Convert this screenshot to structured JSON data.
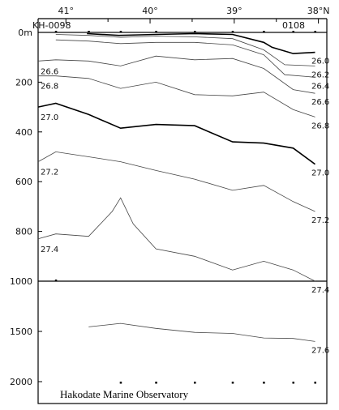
{
  "chart_data": {
    "type": "line",
    "title": "",
    "cruise": "KH-0098",
    "date_code": "0108",
    "credit": "Hakodate Marine Observatory",
    "x_axis": {
      "quantity": "latitude",
      "unit": "°N",
      "range": [
        41.33,
        37.9
      ],
      "ticks": [
        {
          "value": 41,
          "label": "41°"
        },
        {
          "value": 40,
          "label": "40°"
        },
        {
          "value": 39,
          "label": "39°"
        },
        {
          "value": 38,
          "label": "38°N"
        }
      ]
    },
    "y_axis": {
      "quantity": "depth",
      "unit": "m",
      "inverted": true,
      "upper_panel_range": [
        0,
        1000
      ],
      "lower_panel_range": [
        1000,
        2000
      ],
      "ticks": [
        {
          "value": 0,
          "label": "0m"
        },
        {
          "value": 200,
          "label": "200"
        },
        {
          "value": 400,
          "label": "400"
        },
        {
          "value": 600,
          "label": "600"
        },
        {
          "value": 800,
          "label": "800"
        },
        {
          "value": 1000,
          "label": "1000"
        },
        {
          "value": 1500,
          "label": "1500"
        },
        {
          "value": 2000,
          "label": "2000"
        }
      ]
    },
    "stations_lat": [
      41.12,
      40.35,
      39.93,
      39.47,
      39.02,
      38.65,
      38.3,
      38.04
    ],
    "station_top_lat": [
      41.12,
      40.73,
      40.35,
      39.93,
      39.47,
      39.02,
      38.65,
      38.3,
      38.04
    ],
    "station_bottom_lat": [
      41.12,
      40.35,
      39.93,
      39.47,
      39.02,
      38.65,
      38.3,
      38.04
    ],
    "series": [
      {
        "name": "26.0",
        "right_label": "26.0",
        "bold": true,
        "x": [
          40.75,
          40.37,
          39.93,
          39.47,
          39.02,
          38.65,
          38.55,
          38.3,
          38.04
        ],
        "y": [
          5,
          12,
          8,
          5,
          8,
          40,
          60,
          85,
          80
        ]
      },
      {
        "name": "26.2",
        "right_label": "26.2",
        "x": [
          41.12,
          40.73,
          40.35,
          39.93,
          39.47,
          39.02,
          38.65,
          38.4,
          38.04
        ],
        "y": [
          8,
          12,
          20,
          15,
          18,
          25,
          70,
          130,
          135
        ]
      },
      {
        "name": "26.4",
        "right_label": "26.4",
        "x": [
          41.12,
          40.73,
          40.35,
          39.93,
          39.47,
          39.02,
          38.65,
          38.4,
          38.04
        ],
        "y": [
          30,
          35,
          45,
          40,
          40,
          50,
          90,
          170,
          180
        ]
      },
      {
        "name": "26.6",
        "left_label": "26.6",
        "right_label": "26.6",
        "x": [
          41.33,
          41.12,
          40.73,
          40.35,
          39.93,
          39.47,
          39.02,
          38.65,
          38.3,
          38.04
        ],
        "y": [
          115,
          110,
          115,
          135,
          95,
          110,
          105,
          145,
          230,
          245
        ]
      },
      {
        "name": "26.8",
        "left_label": "26.8",
        "right_label": "26.8",
        "x": [
          41.33,
          41.12,
          40.73,
          40.35,
          39.93,
          39.47,
          39.02,
          38.65,
          38.3,
          38.04
        ],
        "y": [
          175,
          175,
          185,
          225,
          200,
          250,
          255,
          240,
          310,
          340
        ]
      },
      {
        "name": "27.0",
        "left_label": "27.0",
        "right_label": "27.0",
        "bold": true,
        "x": [
          41.33,
          41.12,
          40.73,
          40.35,
          39.93,
          39.47,
          39.02,
          38.65,
          38.3,
          38.04
        ],
        "y": [
          300,
          285,
          330,
          385,
          370,
          375,
          440,
          445,
          465,
          530
        ]
      },
      {
        "name": "27.2",
        "left_label": "27.2",
        "right_label": "27.2",
        "x": [
          41.33,
          41.12,
          40.73,
          40.35,
          39.93,
          39.47,
          39.02,
          38.65,
          38.3,
          38.04
        ],
        "y": [
          520,
          480,
          500,
          520,
          555,
          590,
          635,
          615,
          680,
          720
        ]
      },
      {
        "name": "27.4",
        "left_label": "27.4",
        "right_label": "27.4",
        "x": [
          41.33,
          41.12,
          40.73,
          40.45,
          40.35,
          40.2,
          39.93,
          39.47,
          39.02,
          38.65,
          38.3,
          38.04
        ],
        "y": [
          830,
          810,
          820,
          720,
          665,
          770,
          870,
          900,
          955,
          920,
          955,
          1000
        ]
      },
      {
        "name": "27.6",
        "right_label": "27.6",
        "x": [
          40.73,
          40.35,
          39.93,
          39.47,
          39.02,
          38.65,
          38.3,
          38.04
        ],
        "y": [
          1455,
          1420,
          1470,
          1510,
          1520,
          1565,
          1570,
          1600
        ]
      }
    ]
  }
}
